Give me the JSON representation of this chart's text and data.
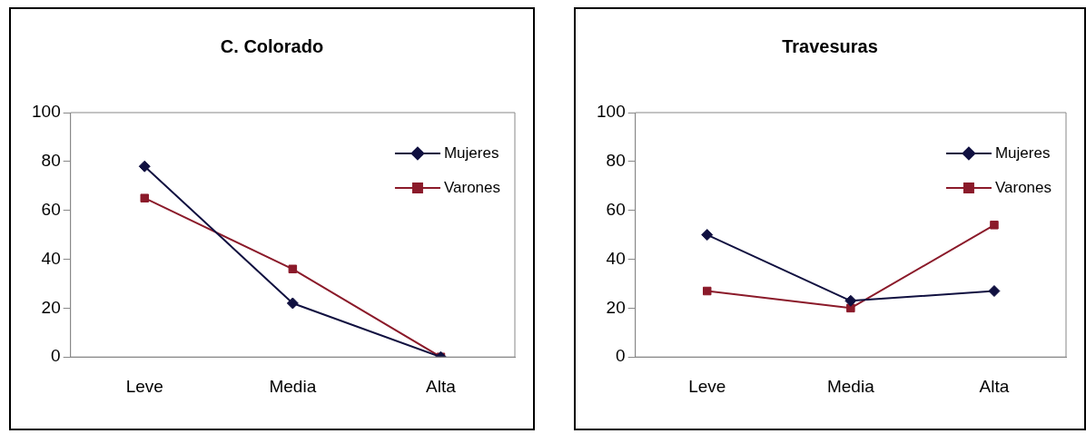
{
  "chart_data": [
    {
      "type": "line",
      "title": "C. Colorado",
      "categories": [
        "Leve",
        "Media",
        "Alta"
      ],
      "ylim": [
        0,
        100
      ],
      "yticks": [
        0,
        20,
        40,
        60,
        80,
        100
      ],
      "grid": false,
      "legend": "top right",
      "series": [
        {
          "name": "Mujeres",
          "color": "#101040",
          "marker": "diamond",
          "values": [
            78,
            22,
            0
          ]
        },
        {
          "name": "Varones",
          "color": "#8b1a2a",
          "marker": "square",
          "values": [
            65,
            36,
            0
          ]
        }
      ]
    },
    {
      "type": "line",
      "title": "Travesuras",
      "categories": [
        "Leve",
        "Media",
        "Alta"
      ],
      "ylim": [
        0,
        100
      ],
      "yticks": [
        0,
        20,
        40,
        60,
        80,
        100
      ],
      "grid": false,
      "legend": "top right",
      "series": [
        {
          "name": "Mujeres",
          "color": "#101040",
          "marker": "diamond",
          "values": [
            50,
            23,
            27
          ]
        },
        {
          "name": "Varones",
          "color": "#8b1a2a",
          "marker": "square",
          "values": [
            27,
            20,
            54
          ]
        }
      ]
    }
  ]
}
